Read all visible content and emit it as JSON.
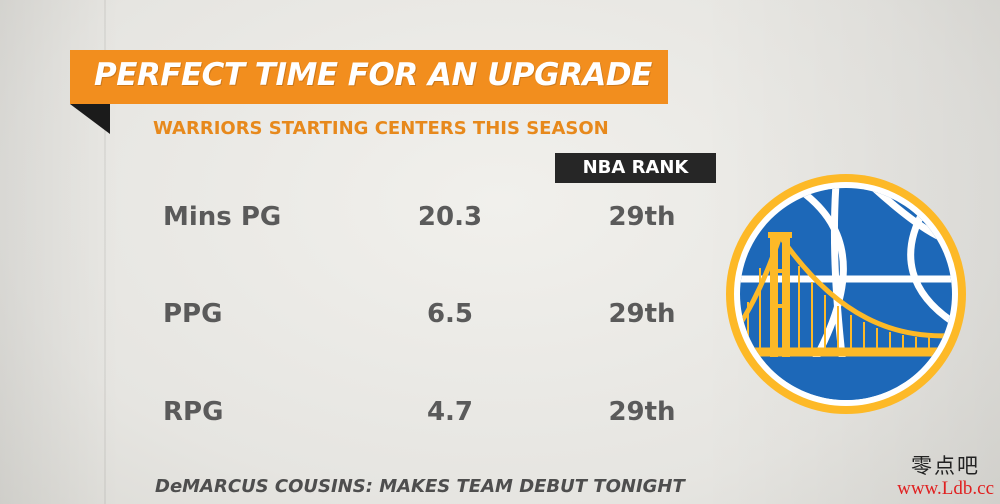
{
  "banner": {
    "title": "PERFECT TIME FOR AN UPGRADE"
  },
  "subtitle": "WARRIORS STARTING CENTERS THIS SEASON",
  "rank_header": "NBA RANK",
  "rows": [
    {
      "label": "Mins PG",
      "value": "20.3",
      "rank": "29th"
    },
    {
      "label": "PPG",
      "value": "6.5",
      "rank": "29th"
    },
    {
      "label": "RPG",
      "value": "4.7",
      "rank": "29th"
    }
  ],
  "footer": "DeMARCUS COUSINS: MAKES TEAM DEBUT TONIGHT",
  "logo": {
    "icon": "golden-state-warriors-logo"
  },
  "watermark": {
    "chinese": "零点吧",
    "url": "www.Ldb.cc"
  },
  "colors": {
    "banner_orange": "#f28e1e",
    "subtitle_orange": "#e7891c",
    "text_gray": "#5a5a5a",
    "badge_black": "#262626",
    "warriors_blue": "#1d68b8",
    "warriors_gold": "#fdb927",
    "watermark_red": "#e02020"
  }
}
